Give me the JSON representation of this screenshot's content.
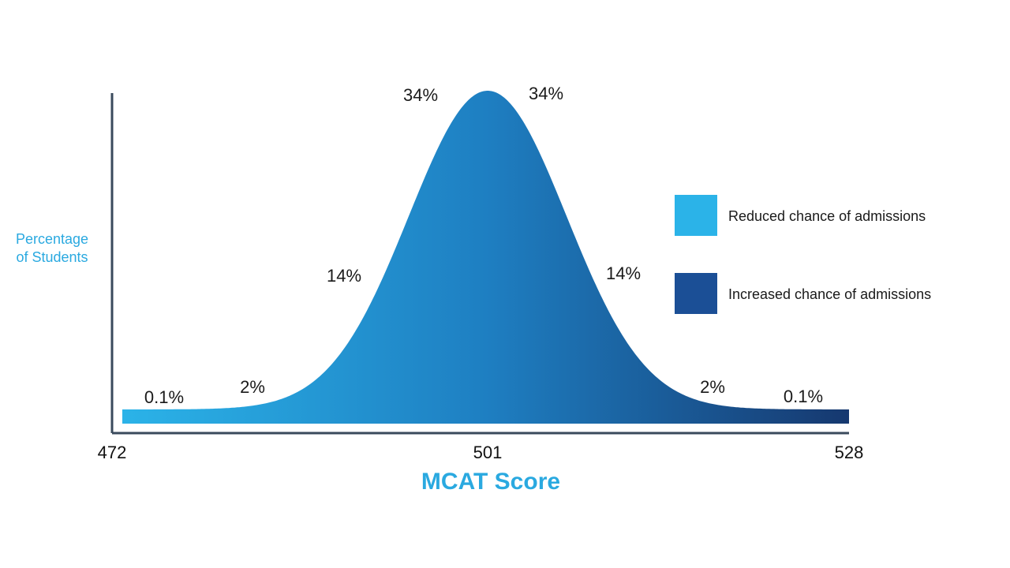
{
  "chart_data": {
    "type": "area",
    "distribution": "normal",
    "x_ticks": [
      472,
      501,
      528
    ],
    "xlim": [
      472,
      528
    ],
    "mean": 501,
    "segments": [
      {
        "label": "0.1%",
        "value": 0.1
      },
      {
        "label": "2%",
        "value": 2
      },
      {
        "label": "14%",
        "value": 14
      },
      {
        "label": "34%",
        "value": 34
      },
      {
        "label": "34%",
        "value": 34
      },
      {
        "label": "14%",
        "value": 14
      },
      {
        "label": "2%",
        "value": 2
      },
      {
        "label": "0.1%",
        "value": 0.1
      }
    ],
    "xlabel": "MCAT Score",
    "ylabel": "Percentage of Students",
    "legend": [
      {
        "label": "Reduced chance of admissions",
        "color": "#2bb3e8"
      },
      {
        "label": "Increased chance of admissions",
        "color": "#1b4f96"
      }
    ],
    "legend_position": "right",
    "grid": false,
    "gradient_colors": [
      "#2bb3e8",
      "#1e7fc2",
      "#16386f"
    ],
    "axis_label_color": "#2aa9e0",
    "axis_color": "#3a4a5c"
  }
}
